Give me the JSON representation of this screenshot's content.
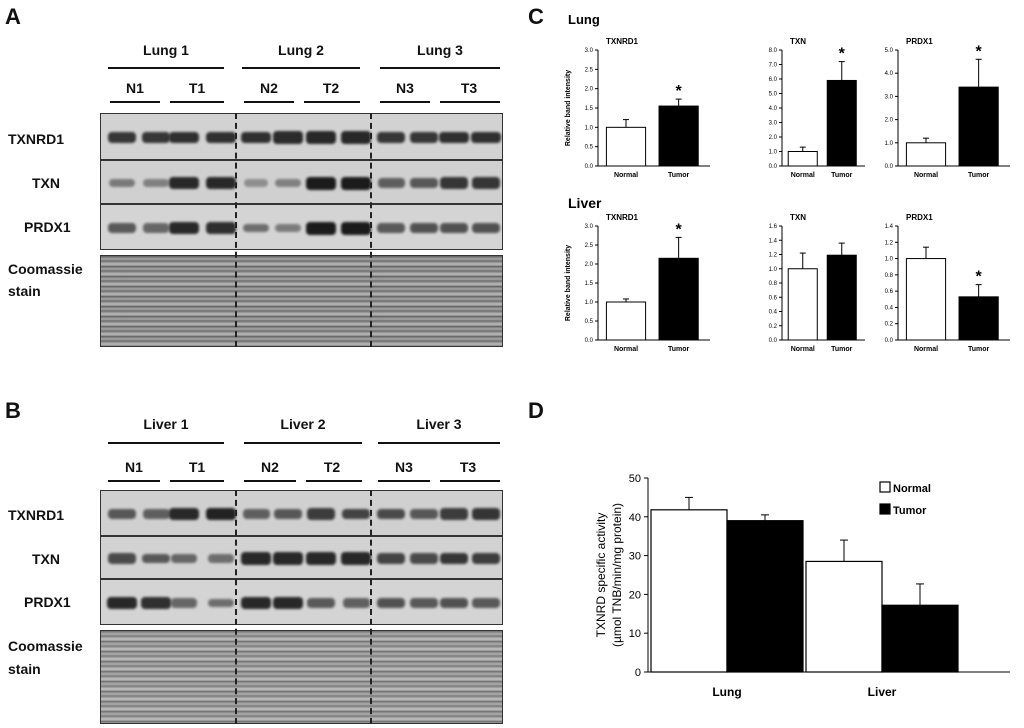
{
  "panel_a": {
    "letter": "A",
    "groups": [
      "Lung 1",
      "Lung 2",
      "Lung 3"
    ],
    "lanes": [
      "N1",
      "T1",
      "N2",
      "T2",
      "N3",
      "T3"
    ],
    "rows": [
      "TXNRD1",
      "TXN",
      "PRDX1"
    ],
    "stain_line1": "Coomassie",
    "stain_line2": "stain",
    "intensity": {
      "TXNRD1": [
        0.8,
        0.8,
        0.85,
        0.85,
        0.85,
        0.88,
        0.9,
        0.9,
        0.8,
        0.8,
        0.85,
        0.85
      ],
      "TXN": [
        0.3,
        0.25,
        0.9,
        0.9,
        0.15,
        0.25,
        1.0,
        1.0,
        0.5,
        0.55,
        0.8,
        0.8
      ],
      "PRDX1": [
        0.55,
        0.45,
        0.9,
        0.85,
        0.4,
        0.3,
        1.0,
        1.0,
        0.55,
        0.6,
        0.6,
        0.6
      ]
    }
  },
  "panel_b": {
    "letter": "B",
    "groups": [
      "Liver 1",
      "Liver 2",
      "Liver 3"
    ],
    "lanes": [
      "N1",
      "T1",
      "N2",
      "T2",
      "N3",
      "T3"
    ],
    "rows": [
      "TXNRD1",
      "TXN",
      "PRDX1"
    ],
    "stain_line1": "Coomassie",
    "stain_line2": "stain",
    "intensity": {
      "TXNRD1": [
        0.55,
        0.5,
        0.9,
        0.95,
        0.5,
        0.55,
        0.75,
        0.7,
        0.65,
        0.55,
        0.75,
        0.8
      ],
      "TXN": [
        0.65,
        0.55,
        0.45,
        0.4,
        0.9,
        0.9,
        0.9,
        0.9,
        0.7,
        0.65,
        0.8,
        0.75
      ],
      "PRDX1": [
        0.9,
        0.85,
        0.45,
        0.4,
        0.9,
        0.9,
        0.55,
        0.5,
        0.6,
        0.55,
        0.6,
        0.55
      ]
    }
  },
  "panel_c": {
    "letter": "C",
    "section_lung": "Lung",
    "section_liver": "Liver"
  },
  "panel_d": {
    "letter": "D"
  },
  "chart_data": [
    {
      "type": "bar",
      "title": "TXNRD1",
      "section": "Lung",
      "categories": [
        "Normal",
        "Tumor"
      ],
      "values": [
        1.0,
        1.55
      ],
      "errors": [
        0.2,
        0.18
      ],
      "significant": [
        false,
        true
      ],
      "star": "*",
      "ylabel": "Relative band intensity",
      "ylim": [
        0,
        3.0
      ],
      "yticks": [
        "0.0",
        "0.5",
        "1.0",
        "1.5",
        "2.0",
        "2.5",
        "3.0"
      ]
    },
    {
      "type": "bar",
      "title": "TXN",
      "section": "Lung",
      "categories": [
        "Normal",
        "Tumor"
      ],
      "values": [
        1.0,
        5.9
      ],
      "errors": [
        0.3,
        1.3
      ],
      "significant": [
        false,
        true
      ],
      "star": "*",
      "ylabel": "",
      "ylim": [
        0,
        8.0
      ],
      "yticks": [
        "0.0",
        "1.0",
        "2.0",
        "3.0",
        "4.0",
        "5.0",
        "6.0",
        "7.0",
        "8.0"
      ]
    },
    {
      "type": "bar",
      "title": "PRDX1",
      "section": "Lung",
      "categories": [
        "Normal",
        "Tumor"
      ],
      "values": [
        1.0,
        3.4
      ],
      "errors": [
        0.2,
        1.2
      ],
      "significant": [
        false,
        true
      ],
      "star": "*",
      "ylabel": "",
      "ylim": [
        0,
        5.0
      ],
      "yticks": [
        "0.0",
        "1.0",
        "2.0",
        "3.0",
        "4.0",
        "5.0"
      ]
    },
    {
      "type": "bar",
      "title": "TXNRD1",
      "section": "Liver",
      "categories": [
        "Normal",
        "Tumor"
      ],
      "values": [
        1.0,
        2.15
      ],
      "errors": [
        0.08,
        0.55
      ],
      "significant": [
        false,
        true
      ],
      "star": "*",
      "ylabel": "Relative band intensity",
      "ylim": [
        0,
        3.0
      ],
      "yticks": [
        "0.0",
        "0.5",
        "1.0",
        "1.5",
        "2.0",
        "2.5",
        "3.0"
      ]
    },
    {
      "type": "bar",
      "title": "TXN",
      "section": "Liver",
      "categories": [
        "Normal",
        "Tumor"
      ],
      "values": [
        1.0,
        1.19
      ],
      "errors": [
        0.22,
        0.17
      ],
      "significant": [
        false,
        false
      ],
      "star": "*",
      "ylabel": "",
      "ylim": [
        0,
        1.6
      ],
      "yticks": [
        "0.0",
        "0.2",
        "0.4",
        "0.6",
        "0.8",
        "1.0",
        "1.2",
        "1.4",
        "1.6"
      ]
    },
    {
      "type": "bar",
      "title": "PRDX1",
      "section": "Liver",
      "categories": [
        "Normal",
        "Tumor"
      ],
      "values": [
        1.0,
        0.53
      ],
      "errors": [
        0.14,
        0.15
      ],
      "significant": [
        false,
        true
      ],
      "star": "*",
      "ylabel": "",
      "ylim": [
        0,
        1.4
      ],
      "yticks": [
        "0.0",
        "0.2",
        "0.4",
        "0.6",
        "0.8",
        "1.0",
        "1.2",
        "1.4"
      ]
    },
    {
      "type": "bar",
      "title": "",
      "categories": [
        "Lung",
        "Liver"
      ],
      "series": [
        {
          "name": "Normal",
          "values": [
            41.8,
            28.5
          ],
          "errors": [
            3.2,
            5.5
          ],
          "color": "#ffffff"
        },
        {
          "name": "Tumor",
          "values": [
            39.0,
            17.2
          ],
          "errors": [
            1.5,
            5.5
          ],
          "color": "#000000"
        }
      ],
      "ylabel_line1": "TXNRD specific activity",
      "ylabel_line2": "(µmol TNB/min/mg protein)",
      "ylim": [
        0,
        50
      ],
      "yticks": [
        "0",
        "10",
        "20",
        "30",
        "40",
        "50"
      ],
      "legend_position": "top-right"
    }
  ]
}
